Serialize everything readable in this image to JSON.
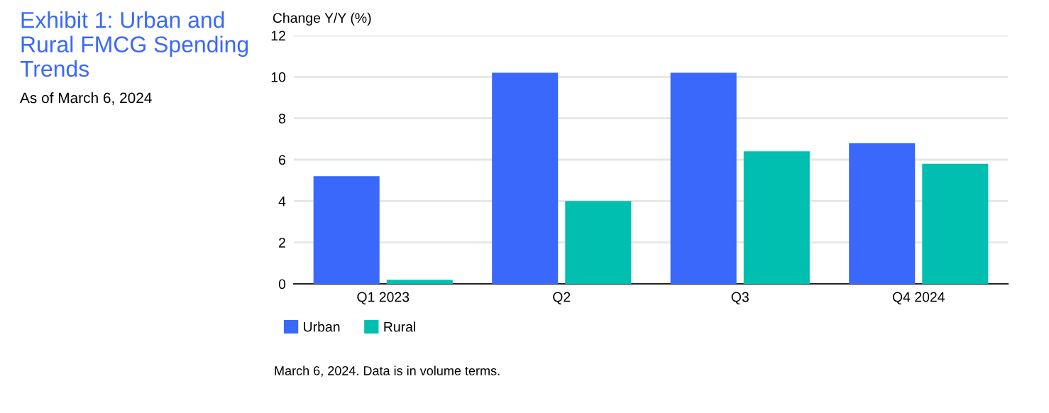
{
  "chart_data": {
    "type": "bar",
    "title": "Exhibit 1: Urban and Rural FMCG Spending Trends",
    "subtitle": "As of March 6, 2024",
    "ylabel": "Change Y/Y (%)",
    "categories": [
      "Q1 2023",
      "Q2",
      "Q3",
      "Q4 2024"
    ],
    "series": [
      {
        "name": "Urban",
        "color": "#3a68fb",
        "values": [
          5.2,
          10.2,
          10.2,
          6.8
        ]
      },
      {
        "name": "Rural",
        "color": "#00bfb0",
        "values": [
          0.2,
          4.0,
          6.4,
          5.8
        ]
      }
    ],
    "ylim": [
      0,
      12
    ],
    "yticks": [
      0,
      2,
      4,
      6,
      8,
      10,
      12
    ],
    "grid": "y",
    "legend": "bottom left",
    "annotations": [
      "March 6, 2024. Data is in volume terms."
    ]
  }
}
